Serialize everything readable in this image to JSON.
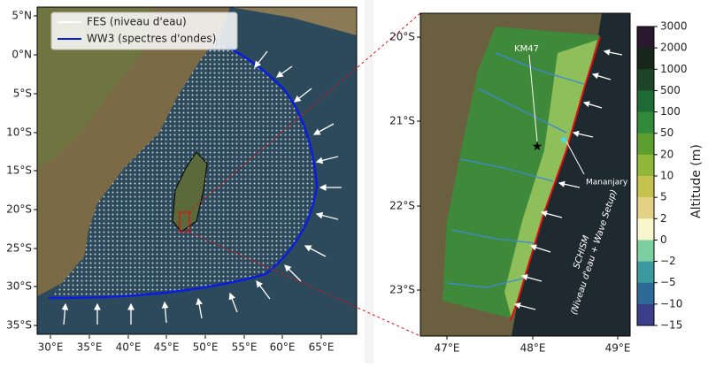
{
  "left_map": {
    "lat_labels": [
      "5°N",
      "0°N",
      "5°S",
      "10°S",
      "15°S",
      "20°S",
      "25°S",
      "30°S",
      "35°S"
    ],
    "lon_labels": [
      "30°E",
      "35°E",
      "40°E",
      "45°E",
      "50°E",
      "55°E",
      "60°E",
      "65°E"
    ],
    "legend": [
      "FES (niveau d'eau)",
      "WW3 (spectres d'ondes)"
    ]
  },
  "right_map": {
    "lat_labels": [
      "20°S",
      "21°S",
      "22°S",
      "23°S"
    ],
    "lon_labels": [
      "47°E",
      "48°E",
      "49°E"
    ],
    "annotations": {
      "km47": "KM47",
      "mananjary": "Mananjary",
      "schism_1": "SCHISM",
      "schism_2": "(Niveau d'eau + Wave Setup)"
    }
  },
  "colorbar": {
    "title": "Altitude (m)",
    "labels": [
      "3000",
      "2000",
      "1000",
      "500",
      "100",
      "50",
      "20",
      "10",
      "5",
      "2",
      "0",
      "−2",
      "−5",
      "−10",
      "−15"
    ]
  }
}
